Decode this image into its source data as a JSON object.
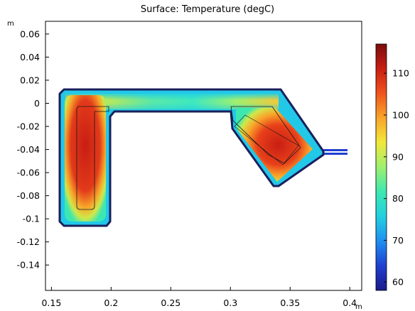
{
  "chart_data": {
    "type": "heatmap",
    "title": "Surface: Temperature (degC)",
    "x_unit": "m",
    "y_unit": "m",
    "xlim": [
      0.145,
      0.41
    ],
    "ylim": [
      -0.162,
      0.071
    ],
    "x_ticks": [
      {
        "value": 0.15,
        "label": "0.15"
      },
      {
        "value": 0.2,
        "label": "0.2"
      },
      {
        "value": 0.25,
        "label": "0.25"
      },
      {
        "value": 0.3,
        "label": "0.3"
      },
      {
        "value": 0.35,
        "label": "0.35"
      },
      {
        "value": 0.4,
        "label": "0.4"
      }
    ],
    "y_ticks": [
      {
        "value": 0.06,
        "label": "0.06"
      },
      {
        "value": 0.04,
        "label": "0.04"
      },
      {
        "value": 0.02,
        "label": "0.02"
      },
      {
        "value": 0,
        "label": "0"
      },
      {
        "value": -0.02,
        "label": "-0.02"
      },
      {
        "value": -0.04,
        "label": "-0.04"
      },
      {
        "value": -0.06,
        "label": "-0.06"
      },
      {
        "value": -0.08,
        "label": "-0.08"
      },
      {
        "value": -0.1,
        "label": "-0.1"
      },
      {
        "value": -0.12,
        "label": "-0.12"
      },
      {
        "value": -0.14,
        "label": "-0.14"
      }
    ],
    "colorbar": {
      "range": [
        58,
        117
      ],
      "ticks": [
        {
          "value": 60,
          "label": "60"
        },
        {
          "value": 70,
          "label": "70"
        },
        {
          "value": 80,
          "label": "80"
        },
        {
          "value": 90,
          "label": "90"
        },
        {
          "value": 100,
          "label": "100"
        },
        {
          "value": 110,
          "label": "110"
        }
      ],
      "colors": [
        "#1a1a8a",
        "#1f3fd0",
        "#1f8ff0",
        "#22d0e0",
        "#3de8b0",
        "#9ef070",
        "#f2e83a",
        "#f9a52a",
        "#f0541e",
        "#c81e14",
        "#7a0c0c"
      ]
    },
    "outline_color": "#1a1f5c"
  }
}
